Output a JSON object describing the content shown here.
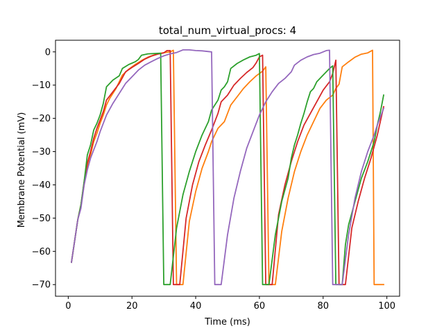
{
  "chart_data": {
    "type": "line",
    "title": "total_num_virtual_procs: 4",
    "xlabel": "Time (ms)",
    "ylabel": "Membrane Potential (mV)",
    "xlim": [
      -4,
      104
    ],
    "ylim": [
      -73.5,
      3.5
    ],
    "xticks": [
      0,
      20,
      40,
      60,
      80,
      100
    ],
    "xtick_labels": [
      "0",
      "20",
      "40",
      "60",
      "80",
      "100"
    ],
    "yticks": [
      -70,
      -60,
      -50,
      -40,
      -30,
      -20,
      -10,
      0
    ],
    "ytick_labels": [
      "−70",
      "−60",
      "−50",
      "−40",
      "−30",
      "−20",
      "−10",
      "0"
    ],
    "grid": false,
    "legend": "none",
    "series": [
      {
        "color": "#ff7f0e",
        "points": [
          [
            1,
            -63.3
          ],
          [
            3,
            -50.5
          ],
          [
            4,
            -46
          ],
          [
            5,
            -40
          ],
          [
            6,
            -34.5
          ],
          [
            7,
            -31
          ],
          [
            8,
            -27
          ],
          [
            9,
            -24.5
          ],
          [
            10,
            -21.5
          ],
          [
            11,
            -19
          ],
          [
            12,
            -16
          ],
          [
            13,
            -14
          ],
          [
            15,
            -11
          ],
          [
            17,
            -7
          ],
          [
            19,
            -5.2
          ],
          [
            21,
            -3.8
          ],
          [
            23,
            -2.6
          ],
          [
            25,
            -1.6
          ],
          [
            27,
            -0.9
          ],
          [
            29,
            -0.4
          ],
          [
            31,
            -0.1
          ],
          [
            32,
            0
          ],
          [
            33,
            0.5
          ],
          [
            34,
            -70
          ],
          [
            36,
            -70
          ],
          [
            38,
            -51
          ],
          [
            40,
            -42
          ],
          [
            42,
            -35
          ],
          [
            44,
            -30
          ],
          [
            45,
            -27
          ],
          [
            47,
            -23
          ],
          [
            49,
            -21
          ],
          [
            50,
            -18.5
          ],
          [
            51,
            -16
          ],
          [
            53,
            -13.5
          ],
          [
            55,
            -11
          ],
          [
            57,
            -9
          ],
          [
            59,
            -7.2
          ],
          [
            61,
            -5.8
          ],
          [
            62,
            -4.5
          ],
          [
            63,
            -70
          ],
          [
            65,
            -70
          ],
          [
            67,
            -54
          ],
          [
            69,
            -44
          ],
          [
            71,
            -36
          ],
          [
            73,
            -30
          ],
          [
            75,
            -25
          ],
          [
            77,
            -21
          ],
          [
            79,
            -17
          ],
          [
            81,
            -14.5
          ],
          [
            83,
            -13
          ],
          [
            84,
            -11
          ],
          [
            85,
            -9.7
          ],
          [
            86,
            -4.5
          ],
          [
            88,
            -3
          ],
          [
            90,
            -1.6
          ],
          [
            92,
            -0.7
          ],
          [
            94,
            -0.3
          ],
          [
            95.5,
            0.5
          ],
          [
            96,
            -70
          ],
          [
            99,
            -70
          ]
        ]
      },
      {
        "color": "#d62728",
        "points": [
          [
            1,
            -63.3
          ],
          [
            3,
            -50.5
          ],
          [
            4,
            -46
          ],
          [
            5,
            -39
          ],
          [
            6,
            -33.5
          ],
          [
            7,
            -30
          ],
          [
            8,
            -26
          ],
          [
            9,
            -23
          ],
          [
            10,
            -20.5
          ],
          [
            11,
            -18
          ],
          [
            12,
            -14.5
          ],
          [
            14,
            -12
          ],
          [
            16,
            -9.5
          ],
          [
            18,
            -6
          ],
          [
            20,
            -4.7
          ],
          [
            22,
            -3.5
          ],
          [
            24,
            -2.2
          ],
          [
            26,
            -1.3
          ],
          [
            28,
            -0.7
          ],
          [
            30,
            -0.3
          ],
          [
            31,
            0.4
          ],
          [
            32,
            0.4
          ],
          [
            33,
            -70
          ],
          [
            35,
            -70
          ],
          [
            37,
            -50
          ],
          [
            39,
            -40
          ],
          [
            41,
            -33
          ],
          [
            43,
            -28
          ],
          [
            45,
            -23.5
          ],
          [
            46,
            -21
          ],
          [
            47,
            -18.5
          ],
          [
            48,
            -15
          ],
          [
            50,
            -13
          ],
          [
            52,
            -10
          ],
          [
            54,
            -8
          ],
          [
            56,
            -6.2
          ],
          [
            58,
            -4.7
          ],
          [
            59,
            -3.3
          ],
          [
            60,
            -1.5
          ],
          [
            61,
            -1
          ],
          [
            62,
            -70
          ],
          [
            64,
            -70
          ],
          [
            66,
            -49
          ],
          [
            68,
            -40
          ],
          [
            70,
            -33
          ],
          [
            72,
            -27
          ],
          [
            74,
            -22
          ],
          [
            76,
            -18.5
          ],
          [
            78,
            -15
          ],
          [
            80,
            -11.5
          ],
          [
            82,
            -9
          ],
          [
            83,
            -6.5
          ],
          [
            84,
            -2.5
          ],
          [
            85,
            -70
          ],
          [
            87,
            -70
          ],
          [
            89,
            -53
          ],
          [
            91,
            -45
          ],
          [
            93,
            -38
          ],
          [
            95,
            -32
          ],
          [
            97,
            -25
          ],
          [
            99,
            -16.5
          ]
        ]
      },
      {
        "color": "#2ca02c",
        "points": [
          [
            1,
            -63.3
          ],
          [
            3,
            -50.5
          ],
          [
            4,
            -46
          ],
          [
            5,
            -39
          ],
          [
            6,
            -31
          ],
          [
            7,
            -28
          ],
          [
            8,
            -23.5
          ],
          [
            9,
            -21.5
          ],
          [
            10,
            -19
          ],
          [
            11,
            -15.5
          ],
          [
            12,
            -10.5
          ],
          [
            14,
            -8.5
          ],
          [
            16,
            -7.2
          ],
          [
            17,
            -5
          ],
          [
            19,
            -3.8
          ],
          [
            21,
            -3
          ],
          [
            22,
            -2.3
          ],
          [
            23,
            -1
          ],
          [
            25,
            -0.6
          ],
          [
            27,
            -0.5
          ],
          [
            29,
            -0.4
          ],
          [
            30,
            -70
          ],
          [
            32,
            -70
          ],
          [
            34,
            -53
          ],
          [
            36,
            -43
          ],
          [
            38,
            -36
          ],
          [
            40,
            -30
          ],
          [
            42,
            -25
          ],
          [
            44,
            -21
          ],
          [
            45,
            -17.5
          ],
          [
            47,
            -14.5
          ],
          [
            48,
            -11.5
          ],
          [
            49,
            -10.5
          ],
          [
            50,
            -9
          ],
          [
            51,
            -5
          ],
          [
            53,
            -3.5
          ],
          [
            55,
            -2.4
          ],
          [
            57,
            -1.5
          ],
          [
            59,
            -1
          ],
          [
            60,
            -0.5
          ],
          [
            61,
            -70
          ],
          [
            63,
            -70
          ],
          [
            65,
            -55
          ],
          [
            67,
            -45
          ],
          [
            69,
            -38
          ],
          [
            70,
            -32
          ],
          [
            71,
            -28
          ],
          [
            72,
            -25
          ],
          [
            73,
            -21.5
          ],
          [
            74,
            -18.5
          ],
          [
            75,
            -15
          ],
          [
            76,
            -12
          ],
          [
            77,
            -11
          ],
          [
            78,
            -9
          ],
          [
            80,
            -7
          ],
          [
            82,
            -5
          ],
          [
            83,
            -4.2
          ],
          [
            84,
            -70
          ],
          [
            86,
            -70
          ],
          [
            87,
            -58
          ],
          [
            88,
            -52
          ],
          [
            90,
            -45
          ],
          [
            92,
            -38
          ],
          [
            94,
            -33
          ],
          [
            96,
            -27
          ],
          [
            97,
            -22
          ],
          [
            98,
            -18
          ],
          [
            99,
            -13
          ]
        ]
      },
      {
        "color": "#9467bd",
        "points": [
          [
            1,
            -63.3
          ],
          [
            3,
            -50.5
          ],
          [
            4,
            -47
          ],
          [
            5,
            -40
          ],
          [
            6,
            -35.5
          ],
          [
            7,
            -32
          ],
          [
            8,
            -29.5
          ],
          [
            9,
            -27
          ],
          [
            10,
            -24
          ],
          [
            11,
            -21.5
          ],
          [
            12,
            -19
          ],
          [
            14,
            -15.5
          ],
          [
            16,
            -12.5
          ],
          [
            18,
            -9.5
          ],
          [
            20,
            -7.5
          ],
          [
            22,
            -5.5
          ],
          [
            24,
            -4
          ],
          [
            26,
            -3
          ],
          [
            28,
            -2
          ],
          [
            30,
            -1.2
          ],
          [
            32,
            -0.6
          ],
          [
            34,
            -0.2
          ],
          [
            36,
            0.6
          ],
          [
            38,
            0.6
          ],
          [
            40,
            0.4
          ],
          [
            42,
            0.3
          ],
          [
            44,
            0.1
          ],
          [
            45,
            0
          ],
          [
            46,
            -70
          ],
          [
            48,
            -70
          ],
          [
            50,
            -55
          ],
          [
            52,
            -44
          ],
          [
            54,
            -36
          ],
          [
            56,
            -29
          ],
          [
            58,
            -24
          ],
          [
            60,
            -19
          ],
          [
            62,
            -15
          ],
          [
            64,
            -12
          ],
          [
            66,
            -9.5
          ],
          [
            68,
            -8
          ],
          [
            70,
            -6
          ],
          [
            71,
            -4
          ],
          [
            73,
            -2.5
          ],
          [
            75,
            -1.5
          ],
          [
            77,
            -0.8
          ],
          [
            79,
            -0.4
          ],
          [
            81,
            0.4
          ],
          [
            82,
            0.5
          ],
          [
            83,
            -70
          ],
          [
            86,
            -70
          ],
          [
            88,
            -55
          ],
          [
            90,
            -44
          ],
          [
            92,
            -36
          ],
          [
            94,
            -30
          ],
          [
            96,
            -25
          ],
          [
            97,
            -22
          ],
          [
            99,
            -17
          ]
        ]
      }
    ]
  }
}
